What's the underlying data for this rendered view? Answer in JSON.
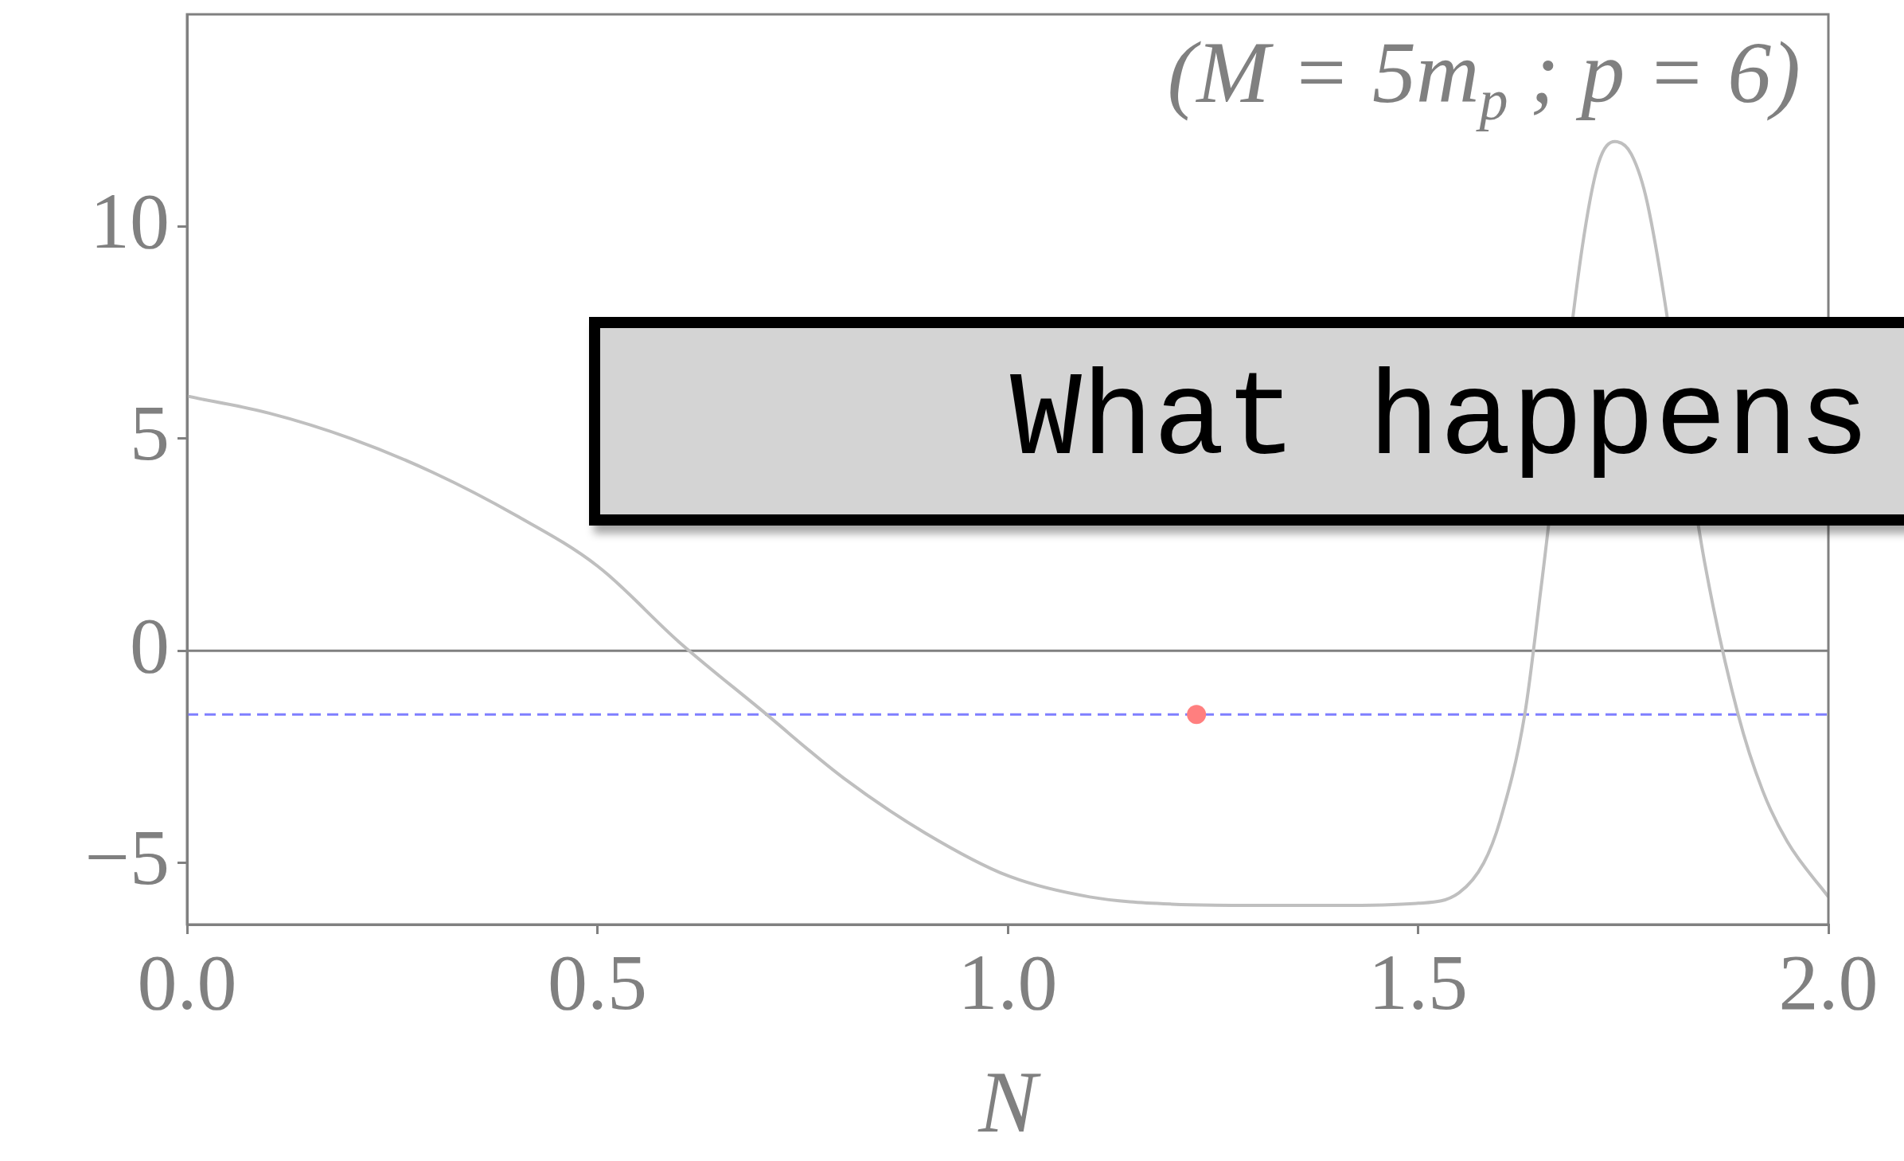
{
  "chart_data": {
    "type": "line",
    "title": "(M = 5m$_{p}$ ; p = 6)",
    "xlabel": "N",
    "xlim": [
      0,
      2
    ],
    "xticks": [
      {
        "value": 0,
        "label": "0.0"
      },
      {
        "value": 0.5,
        "label": "0.5"
      },
      {
        "value": 1,
        "label": "1.0"
      },
      {
        "value": 1.5,
        "label": "1.5"
      },
      {
        "value": 2,
        "label": "2.0"
      }
    ],
    "ylim": [
      -6.45,
      15
    ],
    "yticks": [
      -5,
      0,
      5,
      10
    ],
    "series": [
      {
        "color": "#bfbfbf",
        "x": [
          0,
          0.1,
          0.2,
          0.3,
          0.4,
          0.5,
          0.6,
          0.7,
          0.8,
          0.9,
          1.0,
          1.1,
          1.2,
          1.3,
          1.4,
          1.5,
          1.55,
          1.58,
          1.6,
          1.63,
          1.65,
          1.68,
          1.7,
          1.72,
          1.74,
          1.76,
          1.78,
          1.8,
          1.82,
          1.85,
          1.89,
          1.92,
          1.95,
          2.0
        ],
        "values": [
          6.0,
          5.6,
          5.0,
          4.2,
          3.2,
          2.0,
          0.2,
          -1.4,
          -3.0,
          -4.3,
          -5.3,
          -5.8,
          -5.97,
          -6.0,
          -6.0,
          -5.95,
          -5.7,
          -5.0,
          -4.0,
          -1.5,
          1.5,
          null,
          9.5,
          11.5,
          12.0,
          11.7,
          10.5,
          null,
          null,
          2.0,
          -1.5,
          -3.3,
          -4.5,
          -5.8
        ]
      },
      {
        "type": "scatter",
        "color": "#ff7f7f",
        "x": [
          1.23
        ],
        "values": [
          -1.5
        ]
      }
    ],
    "ref_lines": [
      {
        "axis": "y",
        "value": 0,
        "color": "#808080",
        "line_style": "solid"
      },
      {
        "axis": "y",
        "value": -1.5,
        "color": "#7f7fff",
        "line_style": "dashed"
      }
    ],
    "annotations": [
      "What happens"
    ],
    "line_style": "solid",
    "grid": false,
    "legend": false
  }
}
